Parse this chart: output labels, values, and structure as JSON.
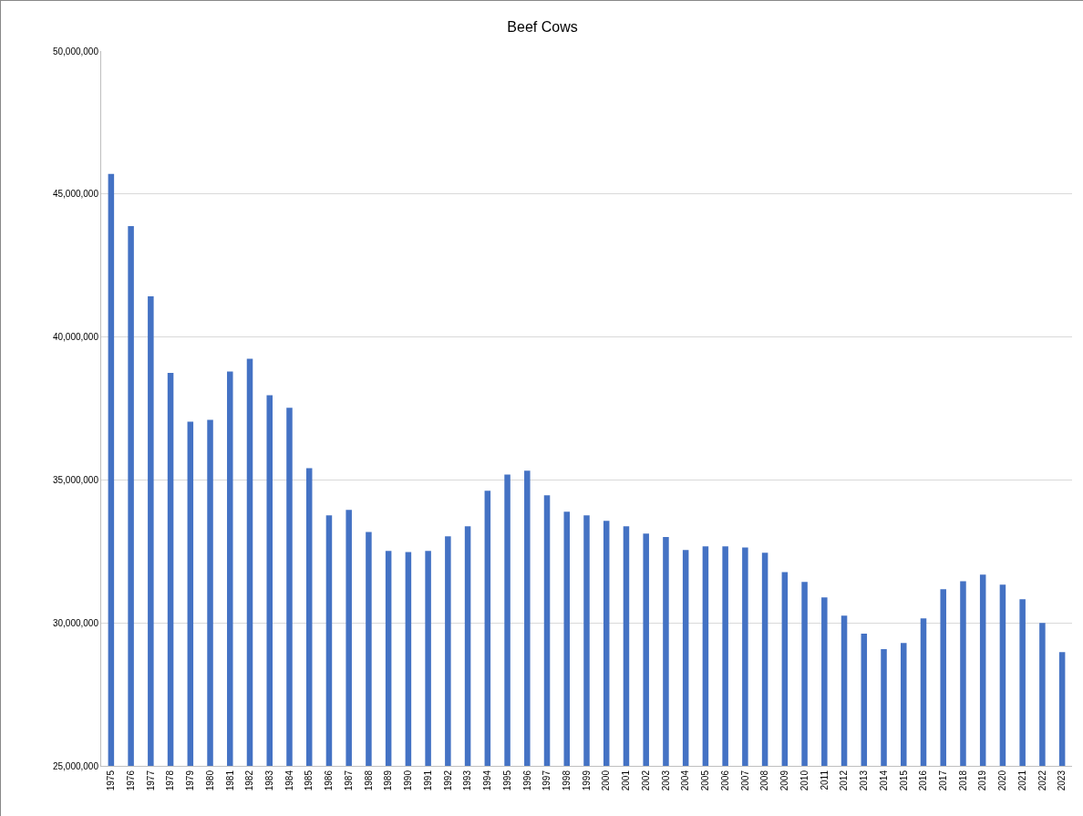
{
  "chart_data": {
    "type": "bar",
    "title": "Beef Cows",
    "categories": [
      "1975",
      "1976",
      "1977",
      "1978",
      "1979",
      "1980",
      "1981",
      "1982",
      "1983",
      "1984",
      "1985",
      "1986",
      "1987",
      "1988",
      "1989",
      "1990",
      "1991",
      "1992",
      "1993",
      "1994",
      "1995",
      "1996",
      "1997",
      "1998",
      "1999",
      "2000",
      "2001",
      "2002",
      "2003",
      "2004",
      "2005",
      "2006",
      "2007",
      "2008",
      "2009",
      "2010",
      "2011",
      "2012",
      "2013",
      "2014",
      "2015",
      "2016",
      "2017",
      "2018",
      "2019",
      "2020",
      "2021",
      "2022",
      "2023"
    ],
    "values": [
      45700000,
      43880000,
      41420000,
      38740000,
      37040000,
      37100000,
      38790000,
      39240000,
      37960000,
      37520000,
      35410000,
      33760000,
      33950000,
      33180000,
      32520000,
      32480000,
      32520000,
      33030000,
      33380000,
      34620000,
      35190000,
      35320000,
      34460000,
      33890000,
      33760000,
      33570000,
      33380000,
      33120000,
      33000000,
      32550000,
      32680000,
      32680000,
      32640000,
      32450000,
      31780000,
      31430000,
      30890000,
      30250000,
      29620000,
      29080000,
      29300000,
      30160000,
      31180000,
      31460000,
      31690000,
      31340000,
      30830000,
      30000000,
      28980000
    ],
    "color": "#4472c4",
    "ylim": [
      25000000,
      50000000
    ],
    "yticks": [
      {
        "value": 25000000,
        "label": "25,000,000"
      },
      {
        "value": 30000000,
        "label": "30,000,000"
      },
      {
        "value": 35000000,
        "label": "35,000,000"
      },
      {
        "value": 40000000,
        "label": "40,000,000"
      },
      {
        "value": 45000000,
        "label": "45,000,000"
      },
      {
        "value": 50000000,
        "label": "50,000,000"
      }
    ],
    "grid": "y"
  }
}
